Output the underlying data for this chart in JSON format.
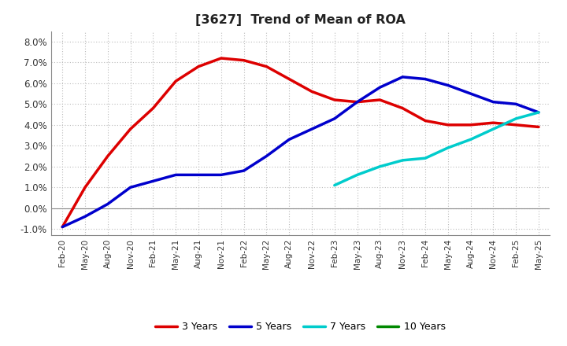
{
  "title": "[3627]  Trend of Mean of ROA",
  "ylim": [
    -0.013,
    0.085
  ],
  "yticks": [
    -0.01,
    0.0,
    0.01,
    0.02,
    0.03,
    0.04,
    0.05,
    0.06,
    0.07,
    0.08
  ],
  "ytick_labels": [
    "-1.0%",
    "0.0%",
    "1.0%",
    "2.0%",
    "3.0%",
    "4.0%",
    "5.0%",
    "6.0%",
    "7.0%",
    "8.0%"
  ],
  "background_color": "#ffffff",
  "grid_color": "#bbbbbb",
  "line_3yr_color": "#dd0000",
  "line_5yr_color": "#0000cc",
  "line_7yr_color": "#00cccc",
  "line_10yr_color": "#008800",
  "line_width": 2.5,
  "legend_labels": [
    "3 Years",
    "5 Years",
    "7 Years",
    "10 Years"
  ],
  "xtick_labels": [
    "Feb-20",
    "May-20",
    "Aug-20",
    "Nov-20",
    "Feb-21",
    "May-21",
    "Aug-21",
    "Nov-21",
    "Feb-22",
    "May-22",
    "Aug-22",
    "Nov-22",
    "Feb-23",
    "May-23",
    "Aug-23",
    "Nov-23",
    "Feb-24",
    "May-24",
    "Aug-24",
    "Nov-24",
    "Feb-25",
    "May-25"
  ],
  "series_3yr": [
    -0.009,
    0.01,
    0.025,
    0.038,
    0.048,
    0.061,
    0.068,
    0.072,
    0.071,
    0.068,
    0.062,
    0.056,
    0.052,
    0.051,
    0.052,
    0.048,
    0.042,
    0.04,
    0.04,
    0.041,
    0.04,
    0.039
  ],
  "series_5yr": [
    -0.009,
    -0.004,
    0.002,
    0.01,
    0.013,
    0.016,
    0.016,
    0.016,
    0.018,
    0.025,
    0.033,
    0.038,
    0.043,
    0.051,
    0.058,
    0.063,
    0.062,
    0.059,
    0.055,
    0.051,
    0.05,
    0.046
  ],
  "series_7yr": [
    null,
    null,
    null,
    null,
    null,
    null,
    null,
    null,
    null,
    null,
    null,
    null,
    0.011,
    0.016,
    0.02,
    0.023,
    0.024,
    0.029,
    0.033,
    0.038,
    0.043,
    0.046
  ],
  "series_10yr": [
    null,
    null,
    null,
    null,
    null,
    null,
    null,
    null,
    null,
    null,
    null,
    null,
    null,
    null,
    null,
    null,
    null,
    null,
    null,
    null,
    null,
    null
  ]
}
